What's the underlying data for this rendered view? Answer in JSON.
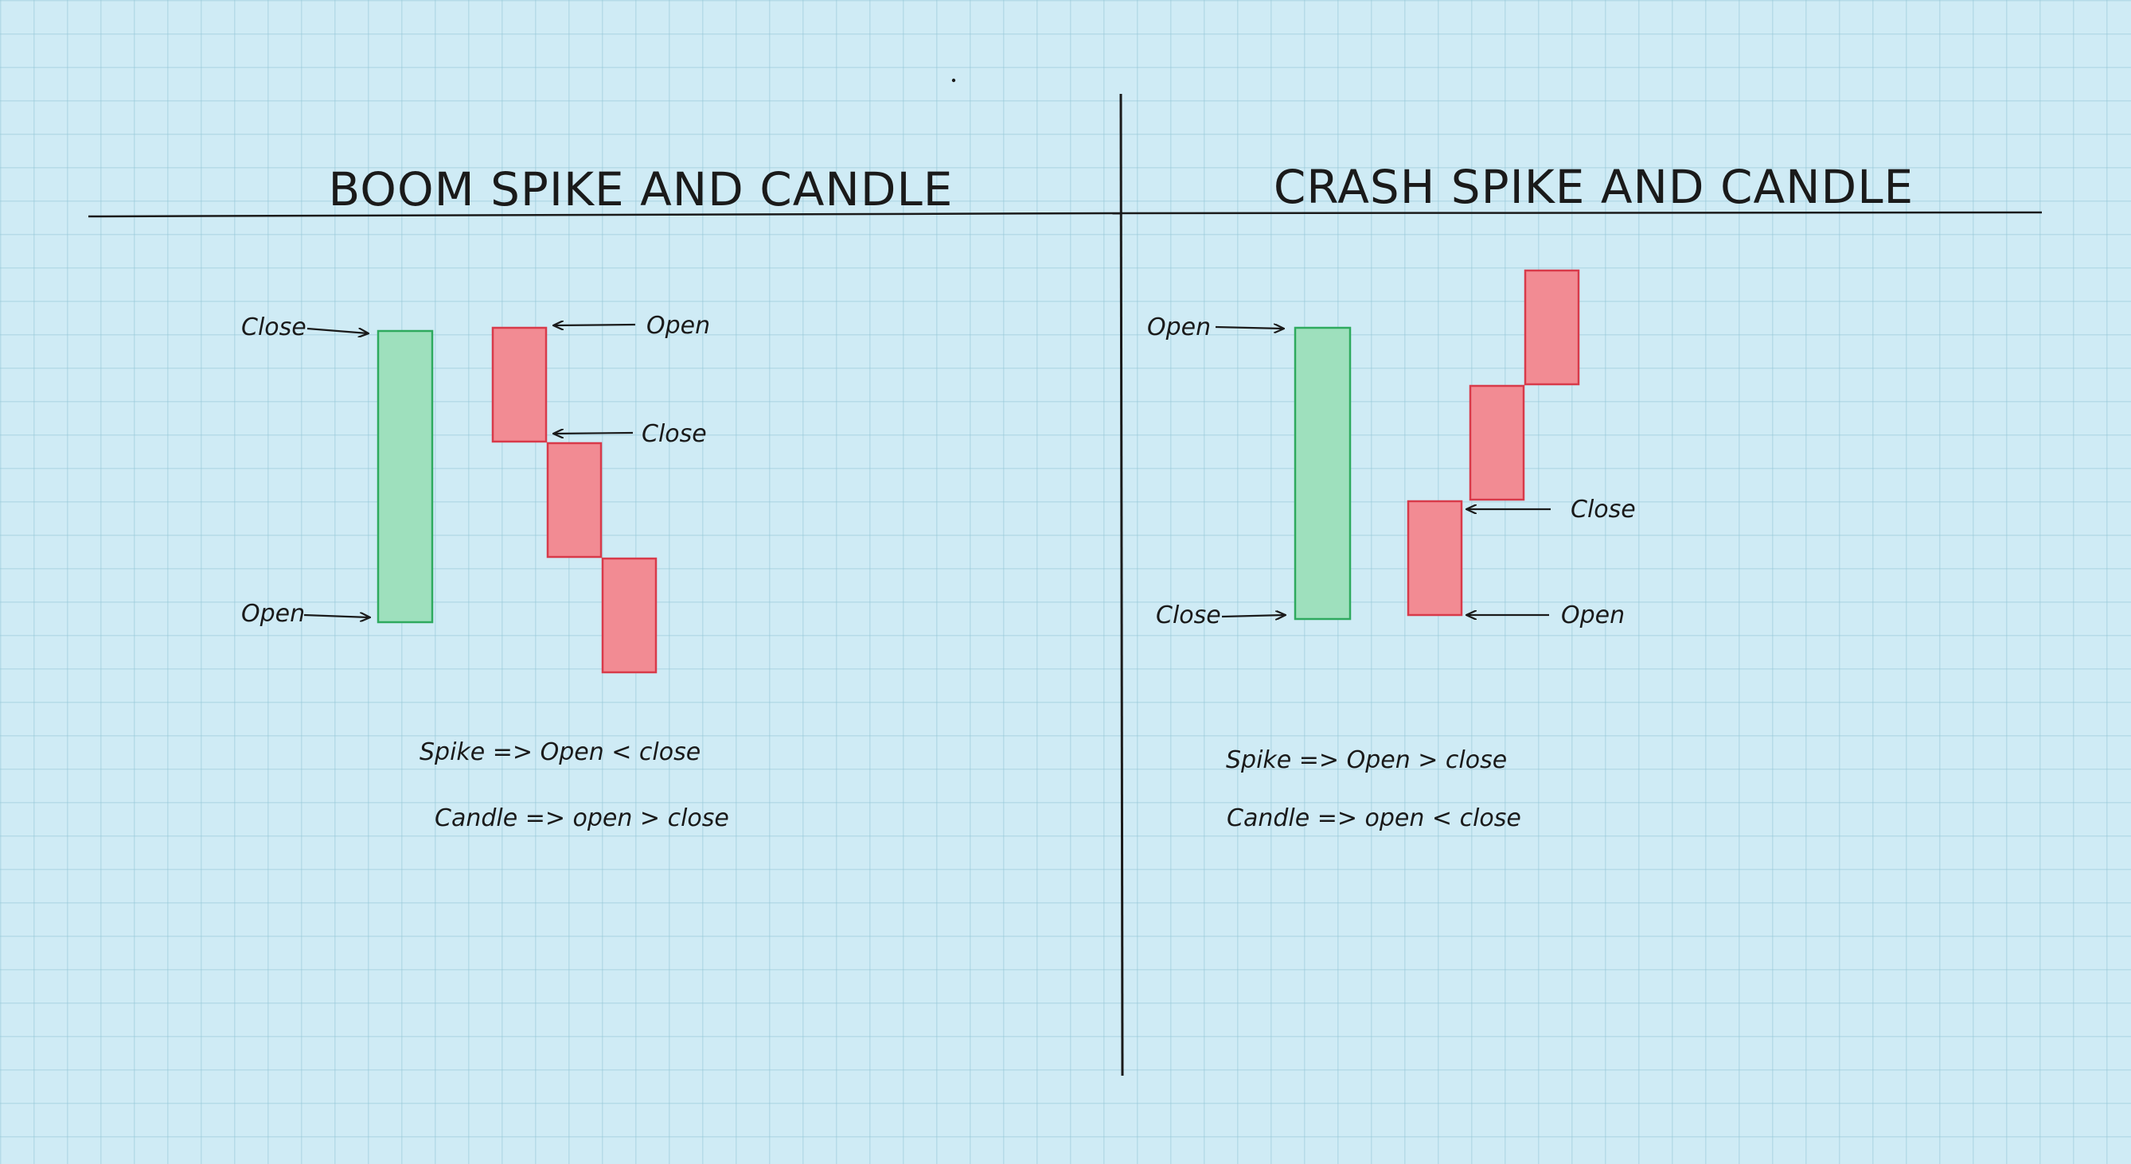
{
  "colors": {
    "background": "#cfebf5",
    "bullish_fill": "#9ee0bd",
    "bullish_stroke": "#2eaa5e",
    "bearish_fill": "#f28b93",
    "bearish_stroke": "#d83a4a",
    "ink": "#1a1a1a"
  },
  "boom": {
    "title": "BOOM SPIKE AND CANDLE",
    "spike_close_label": "Close",
    "spike_open_label": "Open",
    "candle_open_label": "Open",
    "candle_close_label": "Close",
    "spike_formula": "Spike => Open < close",
    "candle_formula": "Candle => open > close"
  },
  "crash": {
    "title": "CRASH SPIKE AND CANDLE",
    "spike_open_label": "Open",
    "spike_close_label": "Close",
    "candle_close_label": "Close",
    "candle_open_label": "Open",
    "spike_formula": "Spike => Open > close",
    "candle_formula": "Candle => open < close"
  }
}
